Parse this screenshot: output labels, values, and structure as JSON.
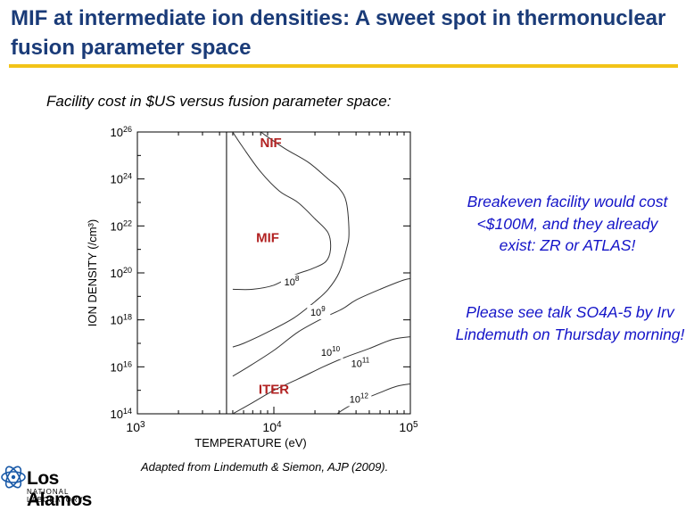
{
  "slide": {
    "title": "MIF at intermediate ion densities:  A sweet spot in thermonuclear fusion parameter space",
    "subtitle": "Facility cost in $US versus fusion parameter space:",
    "note1": "Breakeven facility would cost <$100M, and they already exist:  ZR or ATLAS!",
    "note2": "Please see talk SO4A-5 by Irv Lindemuth on Thursday morning!",
    "credit": "Adapted from Lindemuth & Siemon, AJP (2009).",
    "logo_main": "Los Alamos",
    "logo_sub": "NATIONAL LABORATORY",
    "colors": {
      "title": "#1a3b78",
      "rule": "#f2c318",
      "note": "#1414c8",
      "region_label": "#b22222"
    }
  },
  "chart_data": {
    "type": "contour",
    "xlabel": "TEMPERATURE (eV)",
    "ylabel": "ION DENSITY (/cm³)",
    "x_scale": "log",
    "y_scale": "log",
    "xlim": [
      1000,
      100000
    ],
    "ylim": [
      100000000000000.0,
      1e+26
    ],
    "x_ticks": [
      {
        "value": 1000,
        "base": "10",
        "exp": "3"
      },
      {
        "value": 10000,
        "base": "10",
        "exp": "4"
      },
      {
        "value": 100000,
        "base": "10",
        "exp": "5"
      }
    ],
    "y_ticks": [
      {
        "value": 100000000000000.0,
        "base": "10",
        "exp": "14"
      },
      {
        "value": 1e+16,
        "base": "10",
        "exp": "16"
      },
      {
        "value": 1e+18,
        "base": "10",
        "exp": "18"
      },
      {
        "value": 1e+20,
        "base": "10",
        "exp": "20"
      },
      {
        "value": 1e+22,
        "base": "10",
        "exp": "22"
      },
      {
        "value": 1e+24,
        "base": "10",
        "exp": "24"
      },
      {
        "value": 1e+26,
        "base": "10",
        "exp": "26"
      }
    ],
    "boundary_temperature_eV": 4500,
    "regions": [
      {
        "name": "NIF",
        "temperature_eV": 9500,
        "density_cm3": 1e+26
      },
      {
        "name": "MIF",
        "temperature_eV": 9000,
        "density_cm3": 2e+21
      },
      {
        "name": "ITER",
        "temperature_eV": 10000,
        "density_cm3": 500000000000000.0
      }
    ],
    "contours": [
      {
        "label": {
          "base": "10",
          "exp": "8"
        },
        "label_at": [
          13500,
          3e+19
        ],
        "points": [
          [
            4700,
            2e+26
          ],
          [
            5000,
            1e+26
          ],
          [
            6000,
            2e+25
          ],
          [
            8000,
            2e+24
          ],
          [
            11000,
            3e+23
          ],
          [
            15000,
            1e+23
          ],
          [
            20000,
            2e+22
          ],
          [
            25000,
            5e+21
          ],
          [
            26000,
            1e+21
          ],
          [
            24000,
            3e+20
          ],
          [
            19000,
            1.5e+20
          ],
          [
            14000,
            8e+19
          ],
          [
            10000,
            3e+19
          ],
          [
            7000,
            2e+19
          ],
          [
            5000,
            2e+19
          ]
        ]
      },
      {
        "label": {
          "base": "10",
          "exp": "9"
        },
        "label_at": [
          21000,
          1.5e+18
        ],
        "points": [
          [
            8000,
            1e+26
          ],
          [
            12000,
            2e+25
          ],
          [
            18000,
            5e+24
          ],
          [
            25000,
            1e+24
          ],
          [
            30000,
            4e+23
          ],
          [
            34000,
            1e+23
          ],
          [
            35500,
            5e+21
          ],
          [
            34000,
            1e+21
          ],
          [
            30000,
            1e+20
          ],
          [
            25000,
            2e+19
          ],
          [
            20000,
            6e+18
          ],
          [
            14000,
            1.2e+18
          ],
          [
            9000,
            3e+17
          ],
          [
            6000,
            1e+17
          ],
          [
            5000,
            7e+16
          ]
        ]
      },
      {
        "label": {
          "base": "10",
          "exp": "10"
        },
        "label_at": [
          26000,
          3e+16
        ],
        "points": [
          [
            5000,
            4000000000000000.0
          ],
          [
            6500,
            1e+16
          ],
          [
            10000,
            5e+16
          ],
          [
            15000,
            3e+17
          ],
          [
            23000,
            1.2e+18
          ],
          [
            32000,
            3e+18
          ],
          [
            40000,
            7e+18
          ],
          [
            60000,
            2e+19
          ],
          [
            90000,
            5e+19
          ],
          [
            110000,
            6e+19
          ]
        ]
      },
      {
        "label": {
          "base": "10",
          "exp": "11"
        },
        "label_at": [
          43000,
          1e+16
        ],
        "points": [
          [
            5000,
            100000000000000.0
          ],
          [
            7000,
            300000000000000.0
          ],
          [
            10000,
            1000000000000000.0
          ],
          [
            15000,
            3000000000000000.0
          ],
          [
            23000,
            1e+16
          ],
          [
            33000,
            2.5e+16
          ],
          [
            50000,
            6e+16
          ],
          [
            75000,
            1.5e+17
          ],
          [
            110000,
            2e+17
          ]
        ]
      },
      {
        "label": {
          "base": "10",
          "exp": "12"
        },
        "label_at": [
          42000,
          300000000000000.0
        ],
        "points": [
          [
            29000,
            100000000000000.0
          ],
          [
            35000,
            200000000000000.0
          ],
          [
            45000,
            400000000000000.0
          ],
          [
            60000,
            800000000000000.0
          ],
          [
            80000,
            1500000000000000.0
          ],
          [
            110000,
            2000000000000000.0
          ]
        ]
      }
    ]
  }
}
